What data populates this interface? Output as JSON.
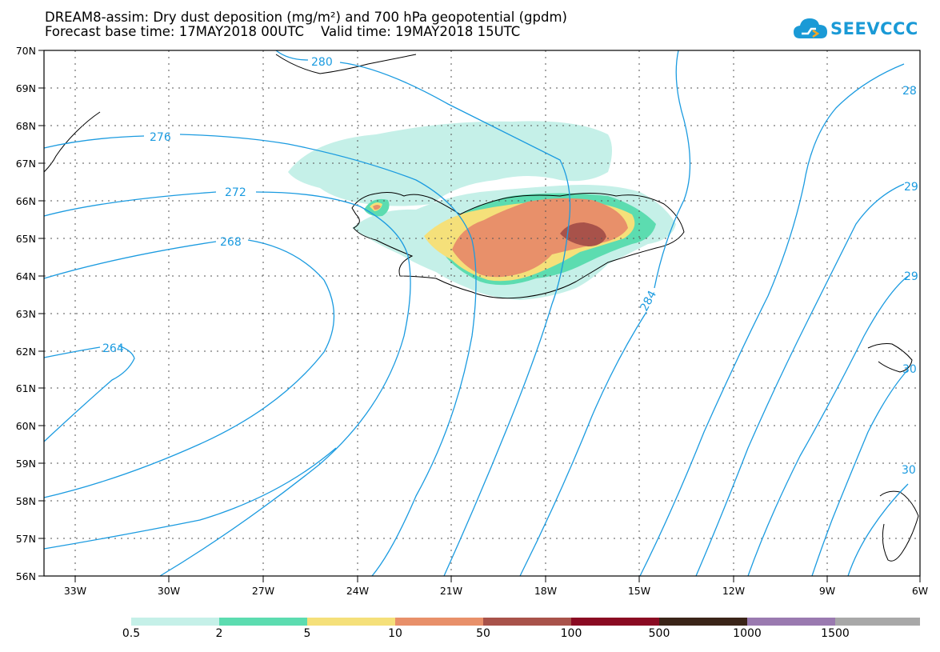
{
  "title_line1": "DREAM8-assim: Dry dust deposition (mg/m²) and 700 hPa geopotential (gpdm)",
  "title_line2": "Forecast base time: 17MAY2018 00UTC    Valid time: 19MAY2018 15UTC",
  "logo_text": "SEEVCCC",
  "map": {
    "lat_labels": [
      "70N",
      "69N",
      "68N",
      "67N",
      "66N",
      "65N",
      "64N",
      "63N",
      "62N",
      "61N",
      "60N",
      "59N",
      "58N",
      "57N",
      "56N"
    ],
    "lon_labels": [
      "33W",
      "30W",
      "27W",
      "24W",
      "21W",
      "18W",
      "15W",
      "12W",
      "9W",
      "6W"
    ],
    "contour_labels": [
      "280",
      "276",
      "272",
      "268",
      "264",
      "284",
      "28",
      "29",
      "29",
      "30",
      "30"
    ],
    "contour_color": "#1b9be0"
  },
  "legend": {
    "labels": [
      "0.5",
      "2",
      "5",
      "10",
      "50",
      "100",
      "500",
      "1000",
      "1500"
    ],
    "colors": [
      "#c5f0e8",
      "#5cdcb0",
      "#f5e07a",
      "#e8906a",
      "#a8524a",
      "#8a0a22",
      "#3a2418",
      "#9a7ab0",
      "#a8a8a8"
    ]
  }
}
